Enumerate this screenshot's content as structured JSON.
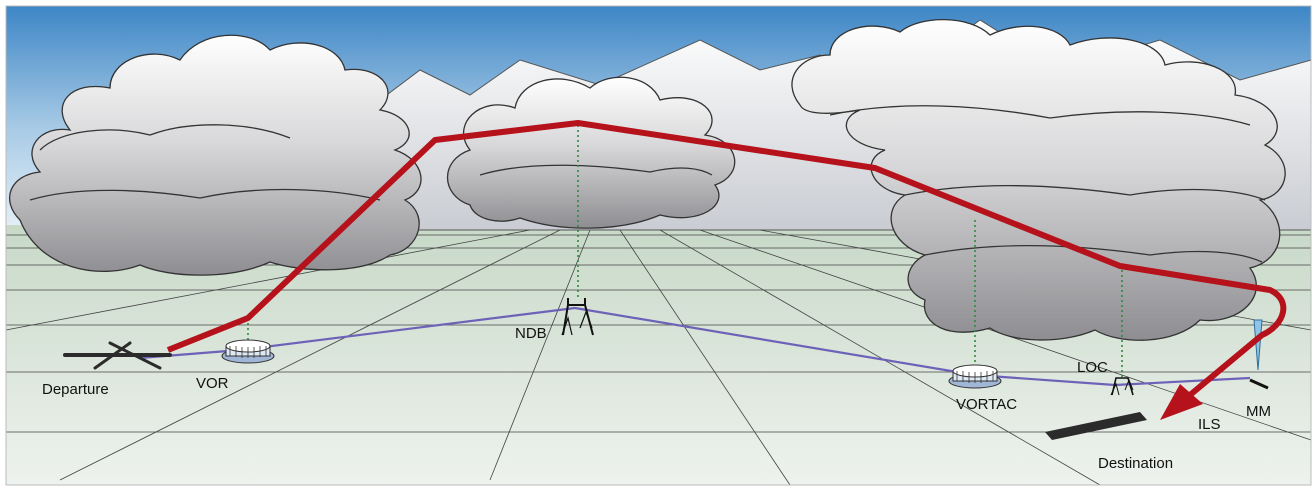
{
  "diagram": {
    "labels": {
      "departure": "Departure",
      "vor": "VOR",
      "ndb": "NDB",
      "vortac": "VORTAC",
      "loc": "LOC",
      "ils": "ILS",
      "mm": "MM",
      "destination": "Destination"
    },
    "colors": {
      "flight_path": "#b5121b",
      "radio_link": "#6d62b8",
      "signal_line": "#2f8a3e",
      "sky_top": "#3d86c6",
      "ground": "#d7e3d4"
    }
  }
}
